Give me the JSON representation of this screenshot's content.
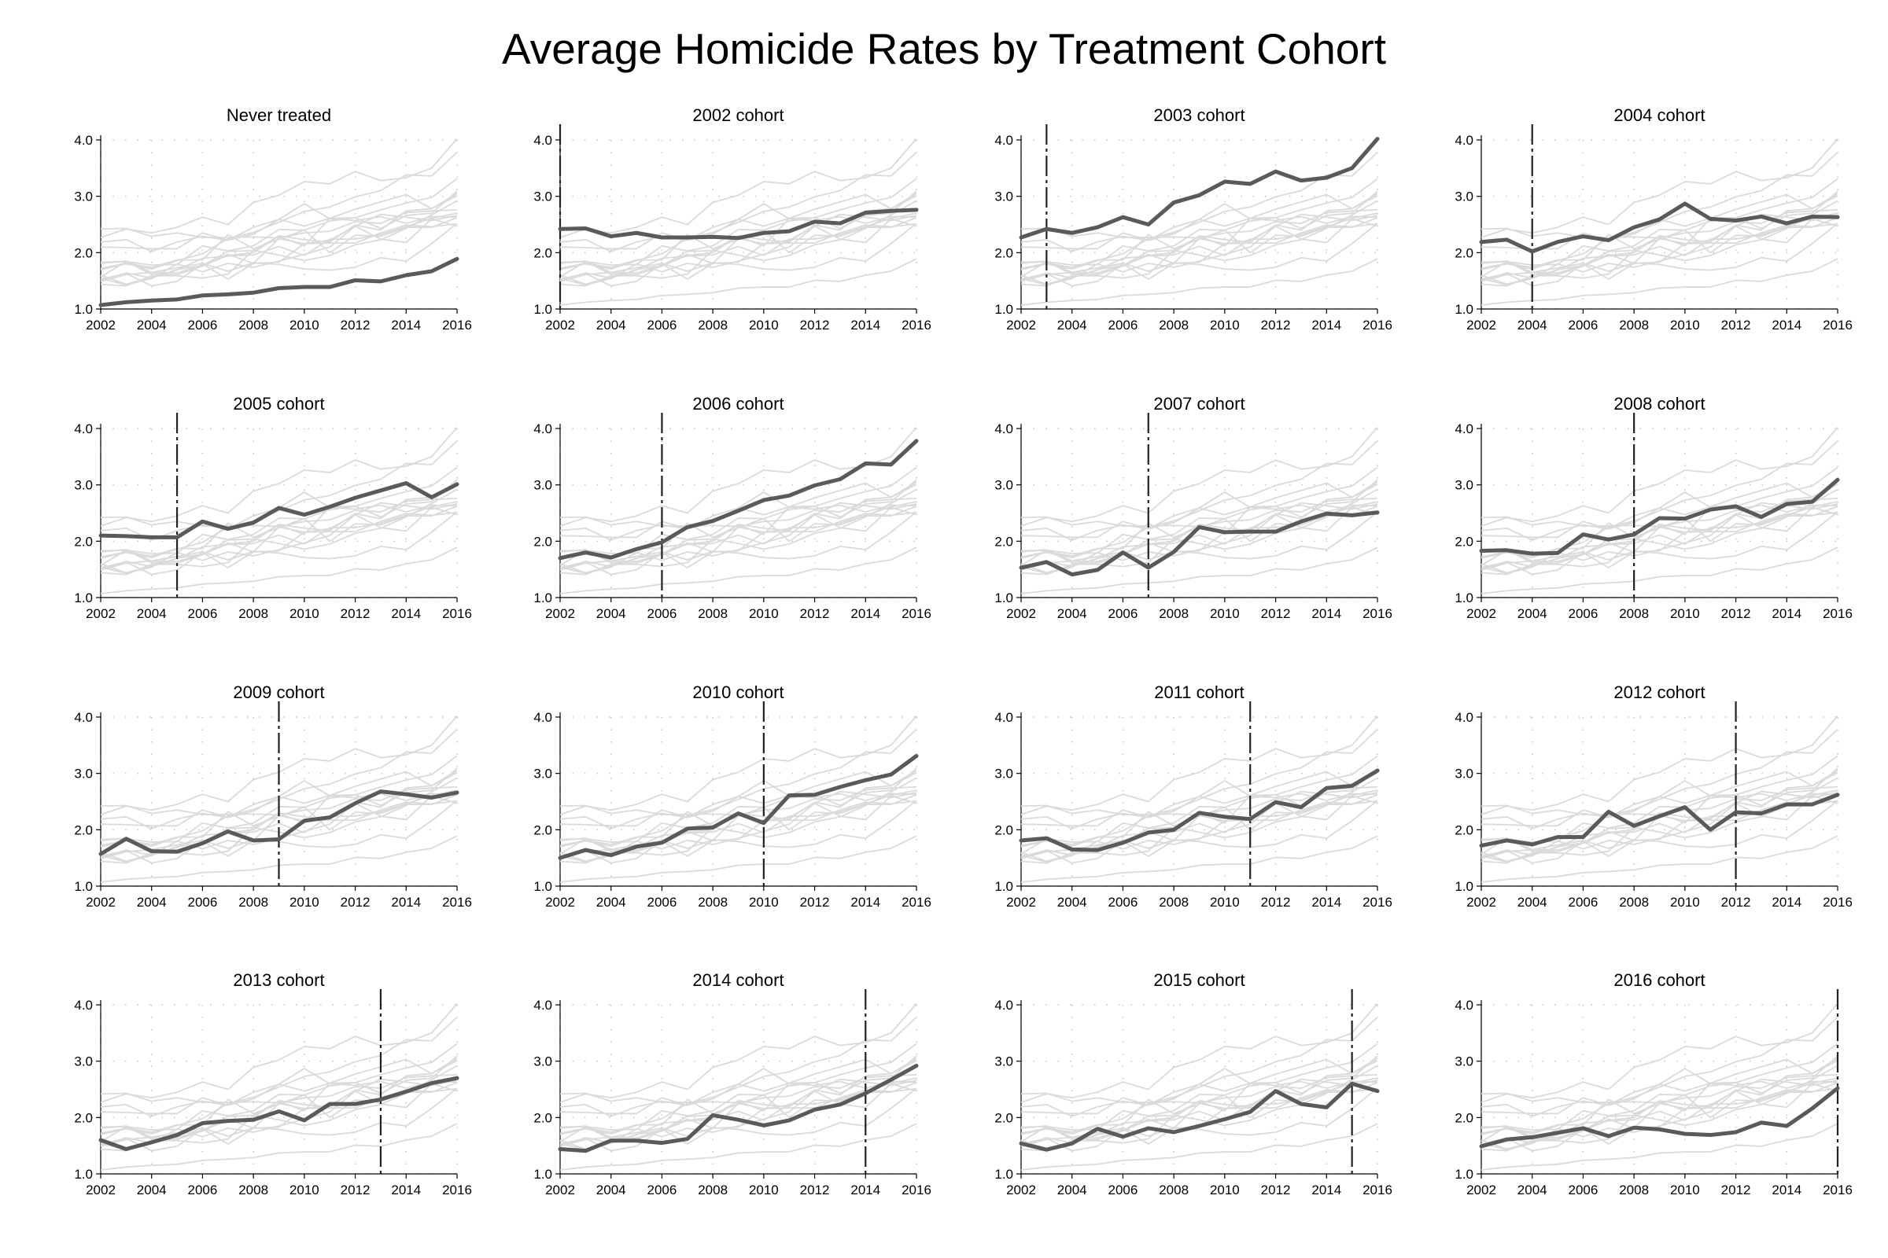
{
  "title": "Average Homicide Rates by Treatment Cohort",
  "chart_data": {
    "type": "line",
    "layout": "4x4 small multiples",
    "x": [
      2002,
      2003,
      2004,
      2005,
      2006,
      2007,
      2008,
      2009,
      2010,
      2011,
      2012,
      2013,
      2014,
      2015,
      2016
    ],
    "xlim": [
      2002,
      2016
    ],
    "ylim": [
      1.0,
      4.0
    ],
    "x_ticks": [
      2002,
      2004,
      2006,
      2008,
      2010,
      2012,
      2014,
      2016
    ],
    "y_ticks": [
      1.0,
      2.0,
      3.0,
      4.0
    ],
    "y_tick_labels": [
      "1.0",
      "2.0",
      "3.0",
      "4.0"
    ],
    "grid": "dotted",
    "colors": {
      "highlight": "#5a5a5a",
      "background": "#dadada",
      "treatment_line": "#222222",
      "grid": "#c4c4c4"
    },
    "panels": [
      {
        "title": "Never treated",
        "treatment_year": null,
        "values": [
          1.07,
          1.12,
          1.15,
          1.17,
          1.24,
          1.26,
          1.29,
          1.37,
          1.39,
          1.39,
          1.51,
          1.49,
          1.6,
          1.67,
          1.89
        ]
      },
      {
        "title": "2002 cohort",
        "treatment_year": 2002,
        "values": [
          2.42,
          2.43,
          2.29,
          2.35,
          2.27,
          2.27,
          2.28,
          2.26,
          2.35,
          2.38,
          2.55,
          2.52,
          2.71,
          2.74,
          2.76
        ]
      },
      {
        "title": "2003 cohort",
        "treatment_year": 2003,
        "values": [
          2.27,
          2.42,
          2.35,
          2.45,
          2.63,
          2.5,
          2.89,
          3.02,
          3.26,
          3.22,
          3.44,
          3.28,
          3.33,
          3.5,
          4.02
        ]
      },
      {
        "title": "2004 cohort",
        "treatment_year": 2004,
        "values": [
          2.19,
          2.23,
          2.02,
          2.19,
          2.29,
          2.22,
          2.45,
          2.59,
          2.87,
          2.6,
          2.57,
          2.64,
          2.52,
          2.64,
          2.63
        ]
      },
      {
        "title": "2005 cohort",
        "treatment_year": 2005,
        "values": [
          2.1,
          2.09,
          2.07,
          2.07,
          2.35,
          2.22,
          2.33,
          2.59,
          2.47,
          2.61,
          2.77,
          2.9,
          3.03,
          2.78,
          3.01
        ]
      },
      {
        "title": "2006 cohort",
        "treatment_year": 2006,
        "values": [
          1.7,
          1.8,
          1.71,
          1.86,
          1.98,
          2.25,
          2.36,
          2.54,
          2.73,
          2.81,
          2.99,
          3.1,
          3.38,
          3.36,
          3.78
        ]
      },
      {
        "title": "2007 cohort",
        "treatment_year": 2007,
        "values": [
          1.53,
          1.63,
          1.41,
          1.49,
          1.8,
          1.53,
          1.81,
          2.25,
          2.16,
          2.17,
          2.17,
          2.35,
          2.49,
          2.46,
          2.51
        ]
      },
      {
        "title": "2008 cohort",
        "treatment_year": 2008,
        "values": [
          1.83,
          1.84,
          1.78,
          1.79,
          2.12,
          2.03,
          2.12,
          2.41,
          2.4,
          2.56,
          2.62,
          2.43,
          2.66,
          2.7,
          3.09
        ]
      },
      {
        "title": "2009 cohort",
        "treatment_year": 2009,
        "values": [
          1.57,
          1.84,
          1.62,
          1.61,
          1.76,
          1.97,
          1.81,
          1.83,
          2.16,
          2.22,
          2.47,
          2.68,
          2.63,
          2.57,
          2.66
        ]
      },
      {
        "title": "2010 cohort",
        "treatment_year": 2010,
        "values": [
          1.5,
          1.64,
          1.55,
          1.7,
          1.77,
          2.02,
          2.04,
          2.29,
          2.12,
          2.61,
          2.62,
          2.76,
          2.88,
          2.98,
          3.31
        ]
      },
      {
        "title": "2011 cohort",
        "treatment_year": 2011,
        "values": [
          1.81,
          1.85,
          1.65,
          1.64,
          1.77,
          1.95,
          2.0,
          2.3,
          2.23,
          2.19,
          2.49,
          2.4,
          2.74,
          2.78,
          3.05
        ]
      },
      {
        "title": "2012 cohort",
        "treatment_year": 2012,
        "values": [
          1.72,
          1.81,
          1.74,
          1.87,
          1.87,
          2.32,
          2.07,
          2.24,
          2.4,
          2.0,
          2.31,
          2.29,
          2.45,
          2.45,
          2.62
        ]
      },
      {
        "title": "2013 cohort",
        "treatment_year": 2013,
        "values": [
          1.6,
          1.44,
          1.56,
          1.69,
          1.9,
          1.94,
          1.96,
          2.11,
          1.95,
          2.24,
          2.24,
          2.32,
          2.46,
          2.61,
          2.7
        ]
      },
      {
        "title": "2014 cohort",
        "treatment_year": 2014,
        "values": [
          1.44,
          1.41,
          1.59,
          1.59,
          1.55,
          1.62,
          2.04,
          1.96,
          1.86,
          1.95,
          2.14,
          2.23,
          2.43,
          2.67,
          2.92
        ]
      },
      {
        "title": "2015 cohort",
        "treatment_year": 2015,
        "values": [
          1.54,
          1.43,
          1.54,
          1.8,
          1.66,
          1.81,
          1.74,
          1.85,
          1.97,
          2.1,
          2.47,
          2.24,
          2.18,
          2.6,
          2.47
        ]
      },
      {
        "title": "2016 cohort",
        "treatment_year": 2016,
        "values": [
          1.49,
          1.61,
          1.65,
          1.73,
          1.81,
          1.67,
          1.82,
          1.79,
          1.71,
          1.69,
          1.74,
          1.91,
          1.85,
          2.16,
          2.52
        ]
      }
    ]
  }
}
